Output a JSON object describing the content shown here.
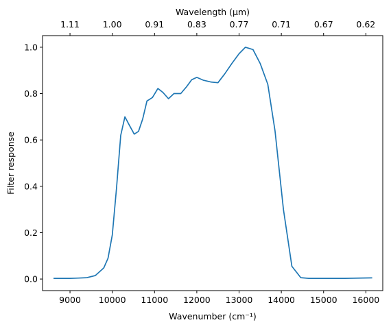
{
  "chart_data": {
    "type": "line",
    "xlabel": "Wavenumber (cm⁻¹)",
    "ylabel": "Filter response",
    "top_xlabel": "Wavelength (μm)",
    "xlim": [
      8350,
      16400
    ],
    "ylim": [
      -0.05,
      1.05
    ],
    "x_ticks": [
      {
        "value": 9000,
        "label": "9000"
      },
      {
        "value": 10000,
        "label": "10000"
      },
      {
        "value": 11000,
        "label": "11000"
      },
      {
        "value": 12000,
        "label": "12000"
      },
      {
        "value": 13000,
        "label": "13000"
      },
      {
        "value": 14000,
        "label": "14000"
      },
      {
        "value": 15000,
        "label": "15000"
      },
      {
        "value": 16000,
        "label": "16000"
      }
    ],
    "y_ticks": [
      {
        "value": 0.0,
        "label": "0.0"
      },
      {
        "value": 0.2,
        "label": "0.2"
      },
      {
        "value": 0.4,
        "label": "0.4"
      },
      {
        "value": 0.6,
        "label": "0.6"
      },
      {
        "value": 0.8,
        "label": "0.8"
      },
      {
        "value": 1.0,
        "label": "1.0"
      }
    ],
    "top_x_ticks": [
      {
        "value": 9000,
        "label": "1.11"
      },
      {
        "value": 10000,
        "label": "1.00"
      },
      {
        "value": 11000,
        "label": "0.91"
      },
      {
        "value": 12000,
        "label": "0.83"
      },
      {
        "value": 13000,
        "label": "0.77"
      },
      {
        "value": 14000,
        "label": "0.71"
      },
      {
        "value": 15000,
        "label": "0.67"
      },
      {
        "value": 16000,
        "label": "0.62"
      }
    ],
    "series": [
      {
        "color": "#1f77b4",
        "x": [
          8610,
          9000,
          9200,
          9400,
          9600,
          9800,
          9900,
          10000,
          10100,
          10200,
          10300,
          10400,
          10520,
          10620,
          10720,
          10820,
          10950,
          11080,
          11200,
          11330,
          11460,
          11620,
          11760,
          11880,
          12000,
          12150,
          12330,
          12500,
          12660,
          12830,
          13000,
          13150,
          13330,
          13500,
          13680,
          13850,
          14050,
          14250,
          14460,
          14650,
          15000,
          15500,
          16150
        ],
        "y": [
          0.003,
          0.003,
          0.004,
          0.006,
          0.015,
          0.048,
          0.09,
          0.19,
          0.39,
          0.62,
          0.7,
          0.665,
          0.625,
          0.637,
          0.69,
          0.768,
          0.783,
          0.822,
          0.805,
          0.778,
          0.8,
          0.8,
          0.83,
          0.86,
          0.87,
          0.858,
          0.85,
          0.847,
          0.885,
          0.93,
          0.972,
          1.0,
          0.99,
          0.93,
          0.84,
          0.64,
          0.3,
          0.055,
          0.006,
          0.003,
          0.003,
          0.003,
          0.005
        ]
      }
    ],
    "grid": false,
    "legend": "none"
  }
}
